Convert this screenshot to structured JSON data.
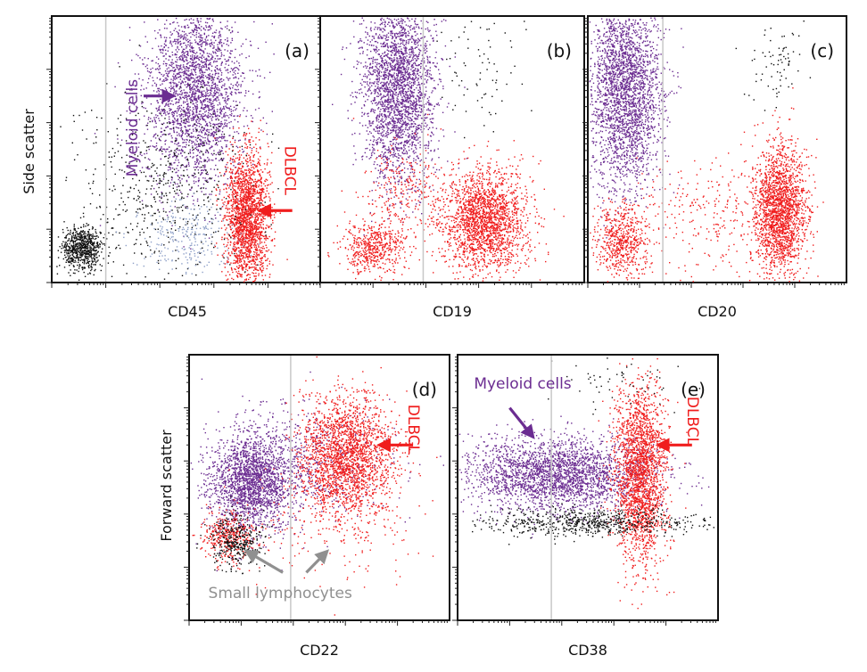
{
  "colors": {
    "myeloid": "#6b2c91",
    "dlbcl": "#f01d1d",
    "lymphocytes": "#909090",
    "black_events": "#111111",
    "blue_events": "#8ea0c8",
    "gate_line": "#c8c8c8"
  },
  "chart_data": [
    {
      "type": "scatter",
      "panel": "(a)",
      "xlabel": "CD45",
      "ylabel": "Side scatter",
      "xlim": [
        0,
        1
      ],
      "ylim": [
        0,
        1
      ],
      "log_x": true,
      "gate_x": 0.2,
      "populations": [
        {
          "color": "myeloid",
          "cx": 0.53,
          "cy": 0.72,
          "sx": 0.09,
          "sy": 0.18,
          "n": 2600
        },
        {
          "color": "dlbcl",
          "cx": 0.72,
          "cy": 0.25,
          "sx": 0.04,
          "sy": 0.12,
          "n": 2000
        },
        {
          "color": "black_events",
          "cx": 0.11,
          "cy": 0.13,
          "sx": 0.035,
          "sy": 0.04,
          "n": 700
        },
        {
          "color": "black_events",
          "cx": 0.4,
          "cy": 0.35,
          "sx": 0.17,
          "sy": 0.17,
          "n": 550
        },
        {
          "color": "blue_events",
          "cx": 0.5,
          "cy": 0.17,
          "sx": 0.09,
          "sy": 0.07,
          "n": 260
        }
      ],
      "annotations": [
        {
          "text": "Myeloid cells",
          "color": "myeloid",
          "x": 0.3,
          "y": 0.58,
          "rotate": -90,
          "arrow": {
            "x1": 0.34,
            "y1": 0.7,
            "x2": 0.45,
            "y2": 0.7
          }
        },
        {
          "text": "DLBCL",
          "color": "dlbcl",
          "x": 0.88,
          "y": 0.42,
          "rotate": 90,
          "arrow": {
            "x1": 0.89,
            "y1": 0.27,
            "x2": 0.77,
            "y2": 0.27
          }
        }
      ]
    },
    {
      "type": "scatter",
      "panel": "(b)",
      "xlabel": "CD19",
      "ylabel": "",
      "xlim": [
        0,
        1
      ],
      "ylim": [
        0,
        1
      ],
      "log_x": true,
      "gate_x": 0.39,
      "populations": [
        {
          "color": "myeloid",
          "cx": 0.29,
          "cy": 0.73,
          "sx": 0.07,
          "sy": 0.17,
          "n": 2600
        },
        {
          "color": "dlbcl",
          "cx": 0.62,
          "cy": 0.23,
          "sx": 0.08,
          "sy": 0.1,
          "n": 2000
        },
        {
          "color": "dlbcl",
          "cx": 0.2,
          "cy": 0.13,
          "sx": 0.06,
          "sy": 0.05,
          "n": 500
        },
        {
          "color": "dlbcl",
          "cx": 0.32,
          "cy": 0.32,
          "sx": 0.08,
          "sy": 0.1,
          "n": 300
        },
        {
          "color": "black_events",
          "cx": 0.6,
          "cy": 0.8,
          "sx": 0.09,
          "sy": 0.12,
          "n": 80
        }
      ],
      "annotations": []
    },
    {
      "type": "scatter",
      "panel": "(c)",
      "xlabel": "CD20",
      "ylabel": "",
      "xlim": [
        0,
        1
      ],
      "ylim": [
        0,
        1
      ],
      "log_x": true,
      "gate_x": 0.29,
      "populations": [
        {
          "color": "myeloid",
          "cx": 0.14,
          "cy": 0.72,
          "sx": 0.07,
          "sy": 0.18,
          "n": 2600
        },
        {
          "color": "dlbcl",
          "cx": 0.74,
          "cy": 0.27,
          "sx": 0.05,
          "sy": 0.12,
          "n": 2000
        },
        {
          "color": "dlbcl",
          "cx": 0.13,
          "cy": 0.15,
          "sx": 0.05,
          "sy": 0.07,
          "n": 600
        },
        {
          "color": "dlbcl",
          "cx": 0.45,
          "cy": 0.25,
          "sx": 0.14,
          "sy": 0.12,
          "n": 250
        },
        {
          "color": "black_events",
          "cx": 0.73,
          "cy": 0.85,
          "sx": 0.05,
          "sy": 0.1,
          "n": 80
        }
      ],
      "annotations": []
    },
    {
      "type": "scatter",
      "panel": "(d)",
      "xlabel": "CD22",
      "ylabel": "Forward scatter",
      "xlim": [
        0,
        1
      ],
      "ylim": [
        0,
        1
      ],
      "log_x": true,
      "gate_x": 0.39,
      "populations": [
        {
          "color": "myeloid",
          "cx": 0.24,
          "cy": 0.52,
          "sx": 0.08,
          "sy": 0.09,
          "n": 2000
        },
        {
          "color": "myeloid",
          "cx": 0.45,
          "cy": 0.6,
          "sx": 0.17,
          "sy": 0.1,
          "n": 600
        },
        {
          "color": "dlbcl",
          "cx": 0.6,
          "cy": 0.62,
          "sx": 0.09,
          "sy": 0.11,
          "n": 2200
        },
        {
          "color": "dlbcl",
          "cx": 0.15,
          "cy": 0.32,
          "sx": 0.05,
          "sy": 0.05,
          "n": 350
        },
        {
          "color": "black_events",
          "cx": 0.18,
          "cy": 0.3,
          "sx": 0.05,
          "sy": 0.05,
          "n": 350
        },
        {
          "color": "dlbcl",
          "cx": 0.5,
          "cy": 0.35,
          "sx": 0.18,
          "sy": 0.1,
          "n": 200
        }
      ],
      "annotations": [
        {
          "text": "DLBCL",
          "color": "dlbcl",
          "x": 0.86,
          "y": 0.72,
          "rotate": 90,
          "arrow": {
            "x1": 0.86,
            "y1": 0.66,
            "x2": 0.73,
            "y2": 0.66
          }
        },
        {
          "text": "Small lymphocytes",
          "color": "lymphocytes",
          "x": 0.35,
          "y": 0.1,
          "rotate": 0,
          "arrow": {
            "x1": 0.36,
            "y1": 0.18,
            "x2": 0.22,
            "y2": 0.26
          }
        },
        {
          "text": "",
          "color": "lymphocytes",
          "x": 0,
          "y": 0,
          "rotate": 0,
          "arrow": {
            "x1": 0.45,
            "y1": 0.18,
            "x2": 0.53,
            "y2": 0.26
          }
        }
      ]
    },
    {
      "type": "scatter",
      "panel": "(e)",
      "xlabel": "CD38",
      "ylabel": "",
      "xlim": [
        0,
        1
      ],
      "ylim": [
        0,
        1
      ],
      "log_x": true,
      "gate_x": 0.36,
      "populations": [
        {
          "color": "myeloid",
          "cx": 0.38,
          "cy": 0.55,
          "sx": 0.18,
          "sy": 0.07,
          "n": 2600
        },
        {
          "color": "dlbcl",
          "cx": 0.7,
          "cy": 0.56,
          "sx": 0.05,
          "sy": 0.17,
          "n": 2200
        },
        {
          "color": "black_events",
          "cx": 0.5,
          "cy": 0.37,
          "sx": 0.22,
          "sy": 0.025,
          "n": 700
        },
        {
          "color": "black_events",
          "cx": 0.62,
          "cy": 0.9,
          "sx": 0.12,
          "sy": 0.05,
          "n": 60
        }
      ],
      "annotations": [
        {
          "text": "Myeloid cells",
          "color": "myeloid",
          "x": 0.25,
          "y": 0.89,
          "rotate": 0,
          "arrow": {
            "x1": 0.2,
            "y1": 0.8,
            "x2": 0.29,
            "y2": 0.69
          }
        },
        {
          "text": "DLBCL",
          "color": "dlbcl",
          "x": 0.9,
          "y": 0.75,
          "rotate": 90,
          "arrow": {
            "x1": 0.9,
            "y1": 0.66,
            "x2": 0.77,
            "y2": 0.66
          }
        }
      ]
    }
  ]
}
